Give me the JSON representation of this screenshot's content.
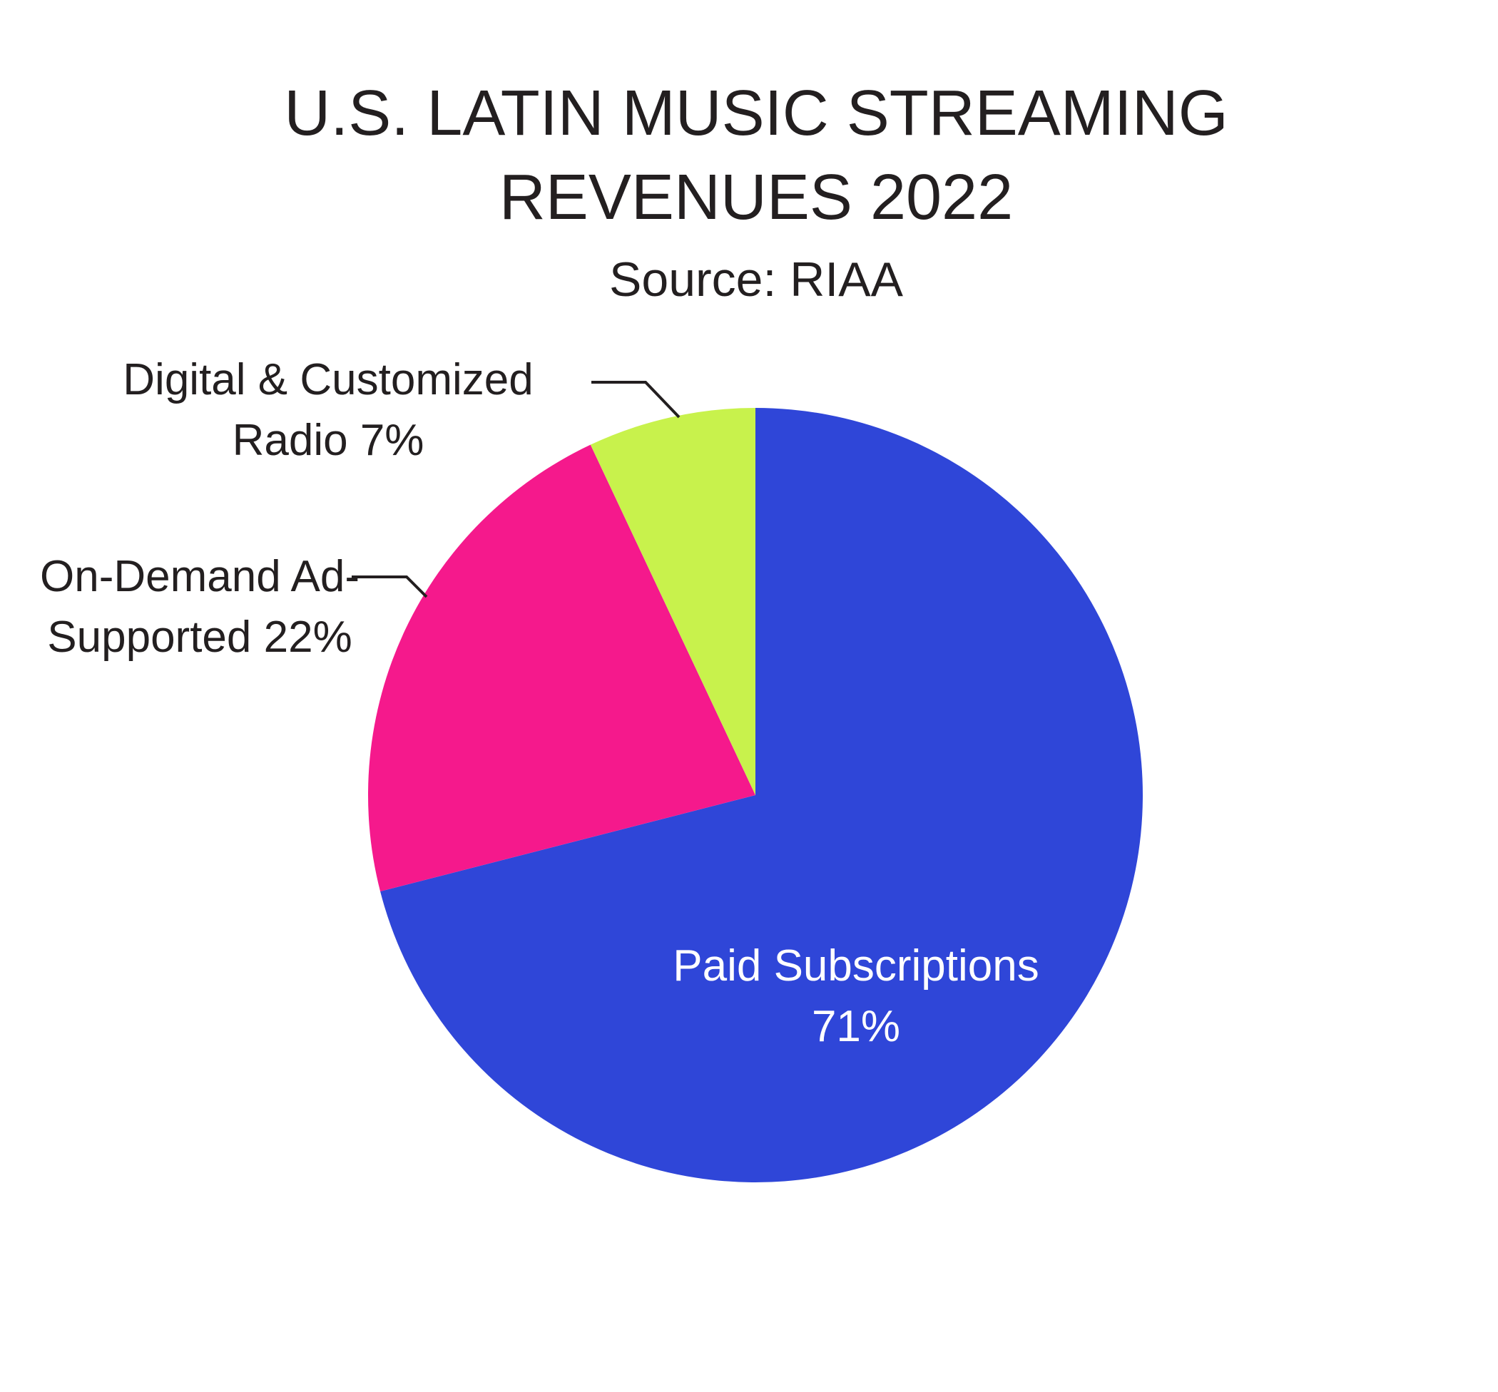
{
  "chart_data": {
    "type": "pie",
    "title": "U.S. LATIN MUSIC STREAMING REVENUES 2022",
    "subtitle": "Source: RIAA",
    "categories": [
      "Paid Subscriptions",
      "On-Demand Ad-Supported",
      "Digital & Customized Radio"
    ],
    "values": [
      71,
      22,
      7
    ],
    "value_labels": [
      "71%",
      "22%",
      "7%"
    ],
    "colors": [
      "#2f46d8",
      "#f5198c",
      "#c8f24c"
    ]
  }
}
